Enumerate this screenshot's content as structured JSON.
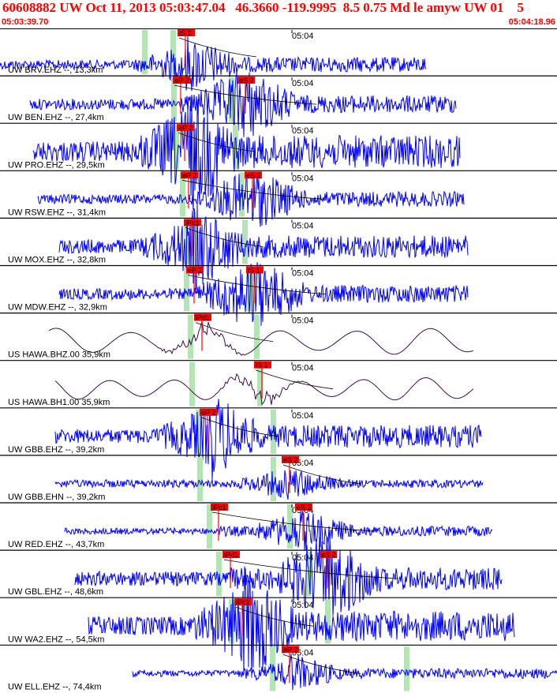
{
  "header": {
    "title": "60608882 UW Oct 11, 2013 05:03:47.04   46.3660 -119.9995  8.5 0.75 Md le amyw UW 01    5",
    "start_time": "05:03:39.70",
    "end_time": "05:04:18.96"
  },
  "time_marker_label": "05:04",
  "colors": {
    "title": "#ff0000",
    "trace_blue": "#0000ff",
    "trace_long_period": "#3a1050",
    "pick_box": "#ff0000",
    "theoretical_band": "#b4e4b4",
    "divider": "#000000"
  },
  "traces": [
    {
      "label": "UW BRV.EHZ --, 13,3km",
      "kind": "hf",
      "p_pick": "iS 2",
      "s_pick": ""
    },
    {
      "label": "UW BEN.EHZ --, 27,4km",
      "kind": "hf",
      "p_pick": "eP 2",
      "s_pick": "eS 2"
    },
    {
      "label": "UW PRO.EHZ --, 29,5km",
      "kind": "hf",
      "p_pick": "eP 2",
      "s_pick": ""
    },
    {
      "label": "UW RSW.EHZ --, 31,4km",
      "kind": "hf",
      "p_pick": "eP 2",
      "s_pick": "eS 2"
    },
    {
      "label": "UW MOX.EHZ --, 32,8km",
      "kind": "hf",
      "p_pick": "iPc1",
      "s_pick": ""
    },
    {
      "label": "UW MDW.EHZ --, 32,9km",
      "kind": "hf",
      "p_pick": "eP 2",
      "s_pick": "iS 1"
    },
    {
      "label": "US HAWA.BHZ.00 35,9km",
      "kind": "lp",
      "p_pick": "iPd1",
      "s_pick": ""
    },
    {
      "label": "US HAWA.BH1.00 35,9km",
      "kind": "lp",
      "p_pick": "",
      "s_pick": "iS 1"
    },
    {
      "label": "UW GBB.EHZ --, 39,2km",
      "kind": "hf",
      "p_pick": "eP 2",
      "s_pick": ""
    },
    {
      "label": "UW GBB.EHN --, 39,2km",
      "kind": "hf",
      "p_pick": "",
      "s_pick": "eS 2"
    },
    {
      "label": "UW RED.EHZ --, 43,7km",
      "kind": "hf",
      "p_pick": "iPc1",
      "s_pick": "eS 2"
    },
    {
      "label": "UW GBL.EHZ --, 48,6km",
      "kind": "hf",
      "p_pick": "iPd1",
      "s_pick": "eS 2"
    },
    {
      "label": "UW WA2.EHZ --, 54,5km",
      "kind": "hf",
      "p_pick": "iPc1",
      "s_pick": ""
    },
    {
      "label": "UW ELL.EHZ --, 74,4km",
      "kind": "hf",
      "p_pick": "eP 2",
      "s_pick": ""
    }
  ]
}
